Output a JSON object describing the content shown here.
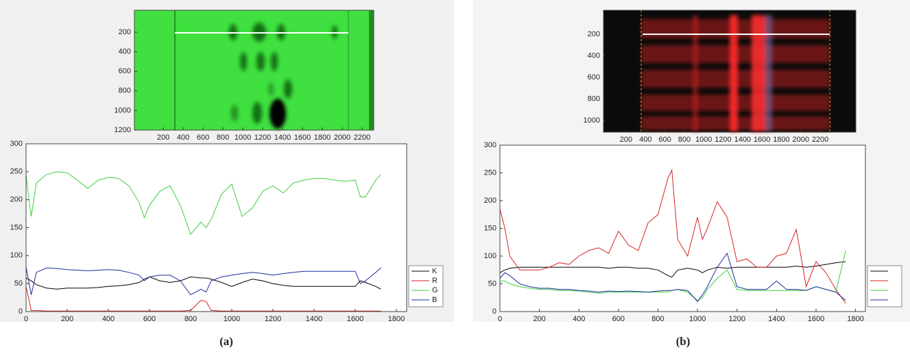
{
  "chart_data": [
    {
      "type": "image",
      "xlim": [
        -90,
        2317
      ],
      "ylim": [
        -24,
        1200
      ],
      "y_reversed": true,
      "xticks": [
        200,
        400,
        600,
        800,
        1000,
        1200,
        1400,
        1600,
        1800,
        2000,
        2200
      ],
      "yticks": [
        200,
        400,
        600,
        800,
        1000,
        1200
      ]
    },
    {
      "type": "line",
      "label": "(a)",
      "xlim": [
        0,
        1850
      ],
      "ylim": [
        0,
        300
      ],
      "xticks": [
        0,
        200,
        400,
        600,
        800,
        1000,
        1200,
        1400,
        1600,
        1800
      ],
      "yticks": [
        0,
        50,
        100,
        150,
        200,
        250,
        300
      ],
      "legend": "right",
      "x": [
        0,
        25,
        50,
        100,
        150,
        200,
        250,
        300,
        350,
        400,
        450,
        500,
        550,
        575,
        600,
        650,
        700,
        750,
        800,
        850,
        875,
        900,
        950,
        1000,
        1050,
        1100,
        1150,
        1200,
        1250,
        1300,
        1350,
        1400,
        1450,
        1500,
        1550,
        1600,
        1625,
        1650,
        1700,
        1725
      ],
      "series": [
        {
          "name": "K",
          "color": "#000000",
          "values": [
            60,
            55,
            48,
            42,
            40,
            42,
            42,
            42,
            43,
            45,
            46,
            48,
            52,
            58,
            62,
            55,
            52,
            55,
            62,
            60,
            60,
            58,
            52,
            45,
            52,
            58,
            55,
            50,
            47,
            45,
            45,
            45,
            45,
            45,
            45,
            45,
            55,
            52,
            45,
            40
          ]
        },
        {
          "name": "R",
          "color": "#d62020",
          "values": [
            45,
            2,
            2,
            1,
            1,
            1,
            1,
            1,
            1,
            1,
            1,
            1,
            1,
            1,
            1,
            1,
            1,
            1,
            2,
            20,
            18,
            2,
            1,
            1,
            1,
            1,
            1,
            1,
            1,
            1,
            1,
            1,
            1,
            1,
            1,
            1,
            1,
            1,
            1,
            1
          ]
        },
        {
          "name": "G",
          "color": "#3ccf3c",
          "values": [
            245,
            170,
            230,
            245,
            250,
            248,
            235,
            220,
            235,
            240,
            238,
            225,
            195,
            168,
            190,
            215,
            225,
            190,
            138,
            160,
            150,
            165,
            210,
            228,
            170,
            185,
            215,
            225,
            212,
            230,
            235,
            238,
            238,
            235,
            233,
            235,
            205,
            205,
            235,
            245
          ]
        },
        {
          "name": "B",
          "color": "#1a2aa0",
          "values": [
            80,
            30,
            70,
            78,
            77,
            75,
            74,
            73,
            74,
            75,
            74,
            70,
            65,
            55,
            62,
            65,
            65,
            55,
            30,
            40,
            35,
            55,
            62,
            65,
            68,
            70,
            68,
            65,
            68,
            70,
            72,
            72,
            72,
            72,
            72,
            72,
            50,
            55,
            70,
            78
          ]
        }
      ]
    },
    {
      "type": "image",
      "xlim": [
        -33,
        2567
      ],
      "ylim": [
        -22,
        1108
      ],
      "y_reversed": true,
      "xticks": [
        200,
        400,
        600,
        800,
        1000,
        1200,
        1400,
        1600,
        1800,
        2000,
        2200
      ],
      "yticks": [
        200,
        400,
        600,
        800,
        1000
      ]
    },
    {
      "type": "line",
      "label": "(b)",
      "xlim": [
        0,
        1850
      ],
      "ylim": [
        0,
        300
      ],
      "xticks": [
        0,
        200,
        400,
        600,
        800,
        1000,
        1200,
        1400,
        1600,
        1800
      ],
      "yticks": [
        0,
        50,
        100,
        150,
        200,
        250,
        300
      ],
      "legend": "right",
      "x": [
        0,
        25,
        50,
        100,
        150,
        200,
        250,
        300,
        350,
        400,
        450,
        500,
        550,
        600,
        650,
        700,
        750,
        800,
        850,
        870,
        900,
        950,
        1000,
        1025,
        1050,
        1100,
        1150,
        1200,
        1250,
        1300,
        1350,
        1400,
        1450,
        1500,
        1550,
        1600,
        1650,
        1700,
        1750
      ],
      "series": [
        {
          "color": "#000000",
          "values": [
            70,
            75,
            78,
            80,
            80,
            80,
            80,
            80,
            80,
            80,
            80,
            80,
            78,
            80,
            80,
            78,
            78,
            75,
            65,
            62,
            75,
            78,
            75,
            70,
            75,
            80,
            78,
            80,
            80,
            80,
            80,
            80,
            80,
            82,
            80,
            82,
            85,
            88,
            90
          ]
        },
        {
          "color": "#d62020",
          "values": [
            185,
            150,
            100,
            75,
            75,
            75,
            80,
            88,
            85,
            100,
            110,
            115,
            105,
            145,
            120,
            110,
            160,
            175,
            240,
            255,
            130,
            100,
            170,
            130,
            150,
            198,
            170,
            90,
            95,
            80,
            80,
            100,
            105,
            148,
            45,
            90,
            70,
            40,
            15
          ]
        },
        {
          "color": "#3ccf3c",
          "values": [
            55,
            55,
            50,
            45,
            42,
            40,
            40,
            38,
            38,
            37,
            35,
            33,
            35,
            35,
            35,
            35,
            35,
            35,
            35,
            38,
            40,
            35,
            20,
            25,
            40,
            60,
            75,
            40,
            38,
            38,
            38,
            38,
            38,
            38,
            38,
            45,
            40,
            35,
            110
          ]
        },
        {
          "color": "#1a2aa0",
          "values": [
            60,
            70,
            65,
            50,
            45,
            42,
            42,
            40,
            40,
            38,
            37,
            35,
            37,
            36,
            37,
            36,
            35,
            37,
            38,
            38,
            40,
            38,
            18,
            30,
            45,
            80,
            105,
            45,
            40,
            40,
            40,
            55,
            40,
            40,
            38,
            45,
            40,
            35,
            20
          ]
        }
      ]
    }
  ]
}
